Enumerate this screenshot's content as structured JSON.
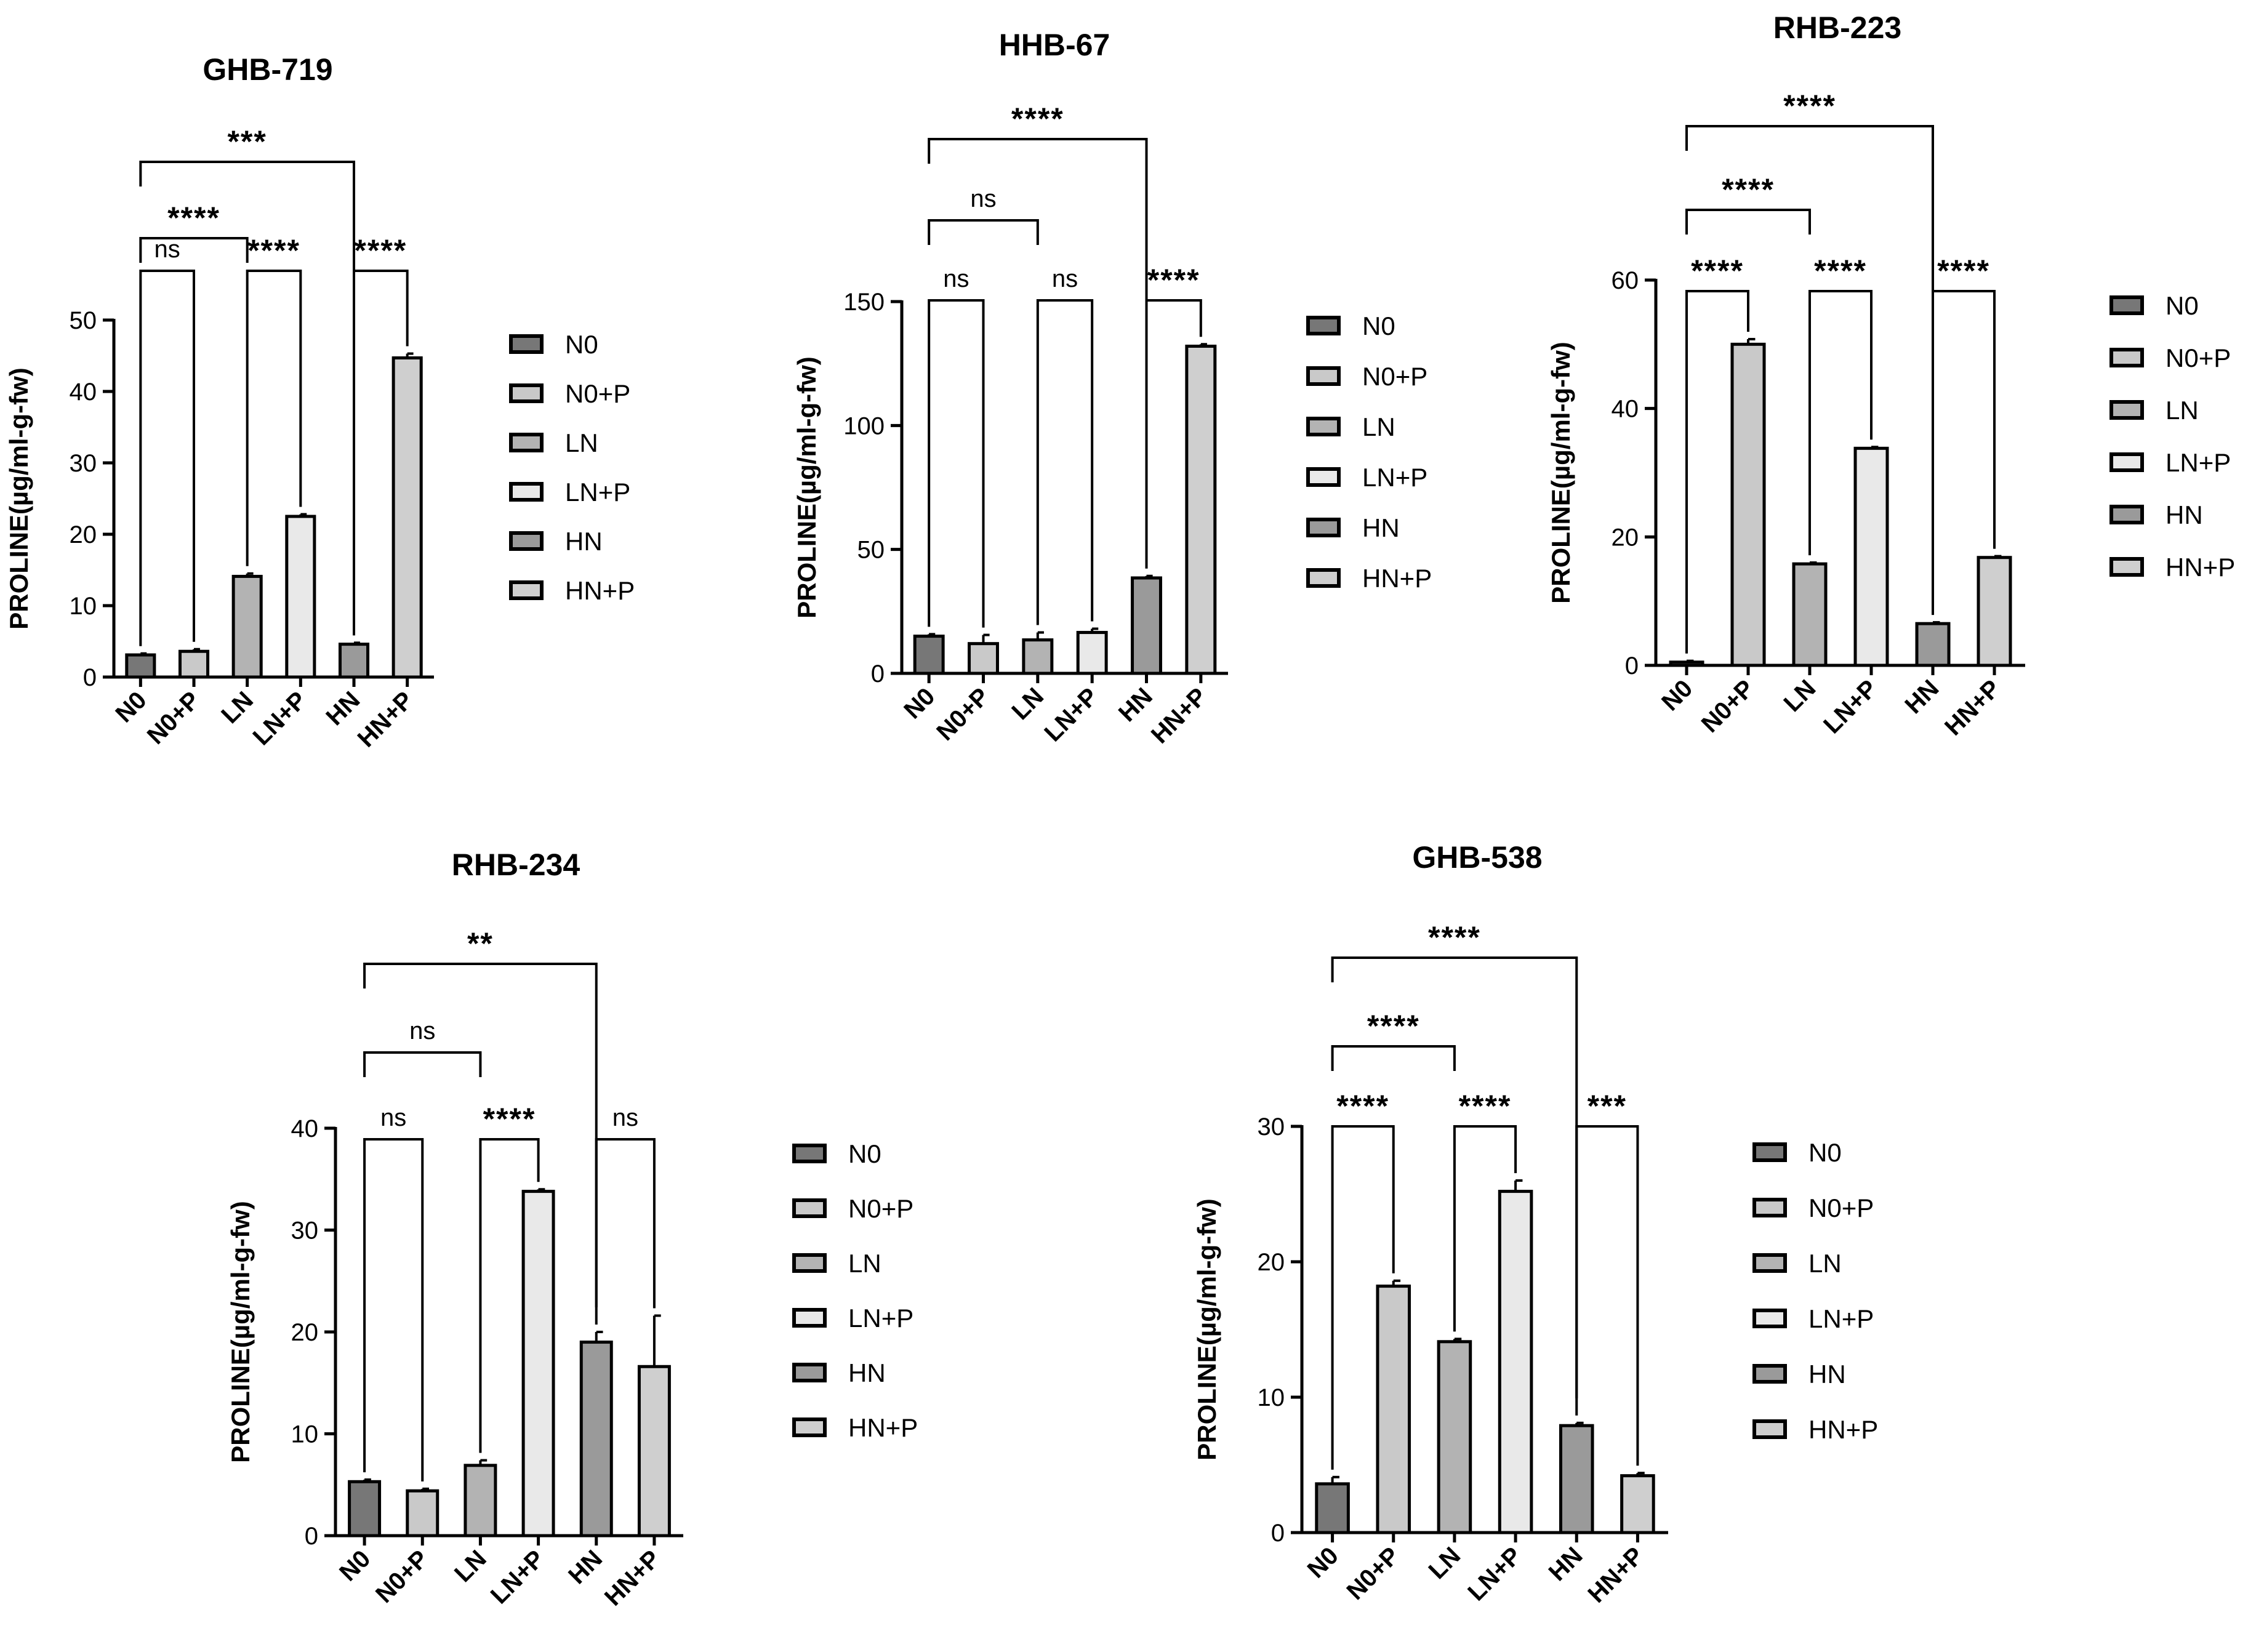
{
  "chart_data": [
    {
      "type": "bar",
      "title": "GHB-719",
      "ylabel": "PROLINE(µg/ml-g-fw)",
      "ylim": [
        0,
        50
      ],
      "yticks": [
        0,
        10,
        20,
        30,
        40,
        50
      ],
      "categories": [
        "N0",
        "N0+P",
        "LN",
        "LN+P",
        "HN",
        "HN+P"
      ],
      "values": [
        3.1,
        3.6,
        14.1,
        22.5,
        4.6,
        44.7
      ],
      "errors": [
        0.2,
        0.3,
        0.4,
        0.3,
        0.2,
        0.6
      ],
      "significance": [
        {
          "from": "N0",
          "to": "N0+P",
          "label": "ns"
        },
        {
          "from": "LN",
          "to": "LN+P",
          "label": "****"
        },
        {
          "from": "HN",
          "to": "HN+P",
          "label": "****"
        },
        {
          "from": "N0",
          "to": "LN",
          "label": "****"
        },
        {
          "from": "N0",
          "to": "HN",
          "label": "***"
        }
      ],
      "legend": [
        "N0",
        "N0+P",
        "LN",
        "LN+P",
        "HN",
        "HN+P"
      ]
    },
    {
      "type": "bar",
      "title": "HHB-67",
      "ylabel": "PROLINE(µg/ml-g-fw)",
      "ylim": [
        0,
        150
      ],
      "yticks": [
        0,
        50,
        100,
        150
      ],
      "categories": [
        "N0",
        "N0+P",
        "LN",
        "LN+P",
        "HN",
        "HN+P"
      ],
      "values": [
        15.0,
        12.0,
        13.5,
        16.5,
        38.5,
        132.0
      ],
      "errors": [
        0.8,
        3.5,
        3.0,
        1.5,
        0.8,
        0.8
      ],
      "significance": [
        {
          "from": "N0",
          "to": "N0+P",
          "label": "ns"
        },
        {
          "from": "LN",
          "to": "LN+P",
          "label": "ns"
        },
        {
          "from": "HN",
          "to": "HN+P",
          "label": "****"
        },
        {
          "from": "N0",
          "to": "LN",
          "label": "ns"
        },
        {
          "from": "N0",
          "to": "HN",
          "label": "****"
        }
      ],
      "legend": [
        "N0",
        "N0+P",
        "LN",
        "LN+P",
        "HN",
        "HN+P"
      ]
    },
    {
      "type": "bar",
      "title": "RHB-223",
      "ylabel": "PROLINE(µg/ml-g-fw)",
      "ylim": [
        0,
        60
      ],
      "yticks": [
        0,
        20,
        40,
        60
      ],
      "categories": [
        "N0",
        "N0+P",
        "LN",
        "LN+P",
        "HN",
        "HN+P"
      ],
      "values": [
        0.5,
        50.0,
        15.8,
        33.8,
        6.5,
        16.8
      ],
      "errors": [
        0.2,
        0.8,
        0.2,
        0.2,
        0.2,
        0.2
      ],
      "significance": [
        {
          "from": "N0",
          "to": "N0+P",
          "label": "****"
        },
        {
          "from": "LN",
          "to": "LN+P",
          "label": "****"
        },
        {
          "from": "HN",
          "to": "HN+P",
          "label": "****"
        },
        {
          "from": "N0",
          "to": "LN",
          "label": "****"
        },
        {
          "from": "N0",
          "to": "HN",
          "label": "****"
        }
      ],
      "legend": [
        "N0",
        "N0+P",
        "LN",
        "LN+P",
        "HN",
        "HN+P"
      ]
    },
    {
      "type": "bar",
      "title": "RHB-234",
      "ylabel": "PROLINE(µg/ml-g-fw)",
      "ylim": [
        0,
        40
      ],
      "yticks": [
        0,
        10,
        20,
        30,
        40
      ],
      "categories": [
        "N0",
        "N0+P",
        "LN",
        "LN+P",
        "HN",
        "HN+P"
      ],
      "values": [
        5.3,
        4.4,
        6.9,
        33.8,
        19.0,
        16.6
      ],
      "errors": [
        0.2,
        0.2,
        0.5,
        0.2,
        1.0,
        5.0
      ],
      "significance": [
        {
          "from": "N0",
          "to": "N0+P",
          "label": "ns"
        },
        {
          "from": "LN",
          "to": "LN+P",
          "label": "****"
        },
        {
          "from": "HN",
          "to": "HN+P",
          "label": "ns"
        },
        {
          "from": "N0",
          "to": "LN",
          "label": "ns"
        },
        {
          "from": "N0",
          "to": "HN",
          "label": "**"
        }
      ],
      "legend": [
        "N0",
        "N0+P",
        "LN",
        "LN+P",
        "HN",
        "HN+P"
      ]
    },
    {
      "type": "bar",
      "title": "GHB-538",
      "ylabel": "PROLINE(µg/ml-g-fw)",
      "ylim": [
        0,
        30
      ],
      "yticks": [
        0,
        10,
        20,
        30
      ],
      "categories": [
        "N0",
        "N0+P",
        "LN",
        "LN+P",
        "HN",
        "HN+P"
      ],
      "values": [
        3.6,
        18.2,
        14.1,
        25.2,
        7.9,
        4.2
      ],
      "errors": [
        0.5,
        0.4,
        0.2,
        0.8,
        0.2,
        0.2
      ],
      "significance": [
        {
          "from": "N0",
          "to": "N0+P",
          "label": "****"
        },
        {
          "from": "LN",
          "to": "LN+P",
          "label": "****"
        },
        {
          "from": "HN",
          "to": "HN+P",
          "label": "***"
        },
        {
          "from": "N0",
          "to": "LN",
          "label": "****"
        },
        {
          "from": "N0",
          "to": "HN",
          "label": "****"
        }
      ],
      "legend": [
        "N0",
        "N0+P",
        "LN",
        "LN+P",
        "HN",
        "HN+P"
      ]
    }
  ],
  "colors": {
    "N0": "#777777",
    "N0+P": "#c9c9c9",
    "LN": "#b3b3b3",
    "LN+P": "#e9e9e9",
    "HN": "#9a9a9a",
    "HN+P": "#cfcfcf",
    "stroke": "#000000"
  }
}
